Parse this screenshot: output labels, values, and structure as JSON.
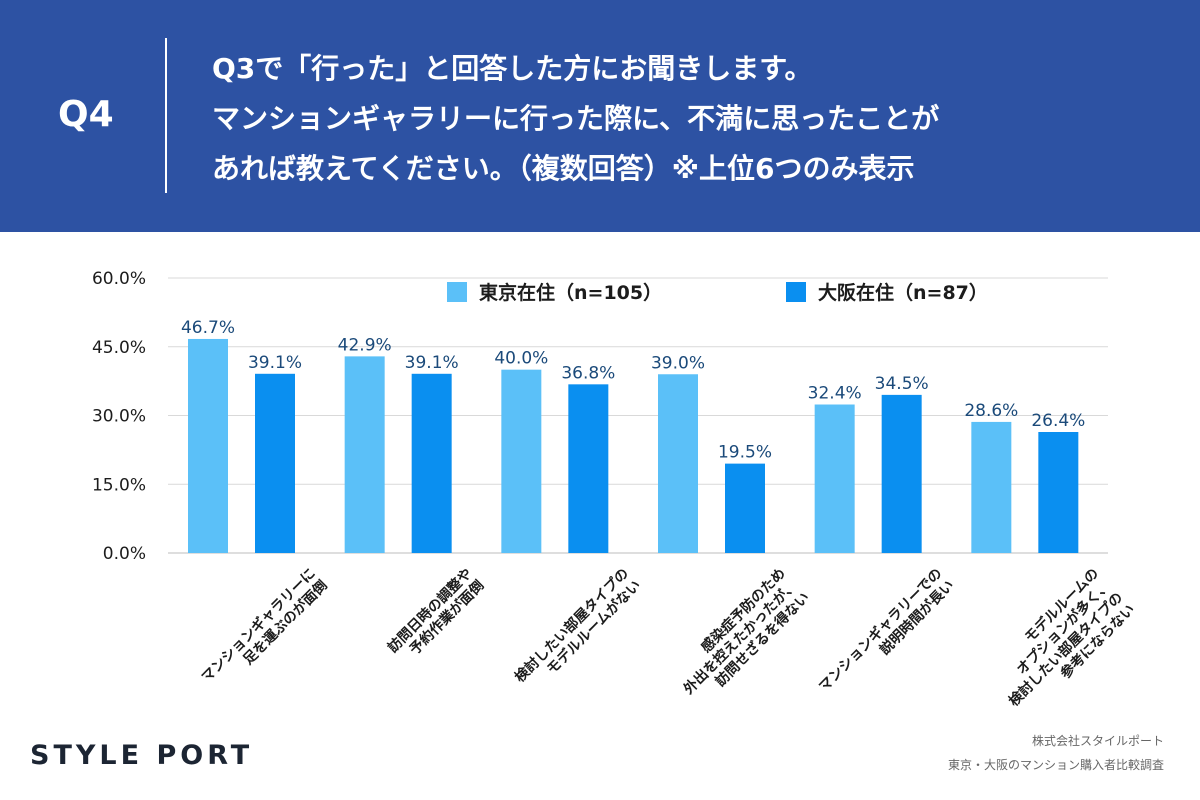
{
  "header": {
    "question_number": "Q4",
    "question_lines": [
      "Q3で「行った」と回答した方にお聞きします。",
      "マンションギャラリーに行った際に、不満に思ったことが",
      "あれば教えてください。（複数回答）※上位6つのみ表示"
    ]
  },
  "chart_data": {
    "type": "bar",
    "categories": [
      [
        "マンションギャラリーに",
        "足を運ぶのが面倒"
      ],
      [
        "訪問日時の調整や",
        "予約作業が面倒"
      ],
      [
        "検討したい部屋タイプの",
        "モデルルームがない"
      ],
      [
        "感染症予防のため",
        "外出を控えたかったが、",
        "訪問せざるを得ない"
      ],
      [
        "マンションギャラリーでの",
        "説明時間が長い"
      ],
      [
        "モデルルームの",
        "オプションが多く、",
        "検討したい部屋タイプの",
        "参考にならない"
      ]
    ],
    "series": [
      {
        "name": "東京在住（n=105）",
        "color": "#5bc0f8",
        "values": [
          46.7,
          42.9,
          40.0,
          39.0,
          32.4,
          28.6
        ],
        "labels": [
          "46.7%",
          "42.9%",
          "40.0%",
          "39.0%",
          "32.4%",
          "28.6%"
        ]
      },
      {
        "name": "大阪在住（n=87）",
        "color": "#0a8ff0",
        "values": [
          39.1,
          39.1,
          36.8,
          19.5,
          34.5,
          26.4
        ],
        "labels": [
          "39.1%",
          "39.1%",
          "36.8%",
          "19.5%",
          "34.5%",
          "26.4%"
        ]
      }
    ],
    "ylim": [
      0,
      60
    ],
    "yticks": [
      "0.0%",
      "15.0%",
      "30.0%",
      "45.0%",
      "60.0%"
    ],
    "grid": true,
    "legend_position": "top-right",
    "label_color": "#1b4a7a"
  },
  "footer": {
    "brand": "STYLE PORT",
    "company": "株式会社スタイルポート",
    "survey": "東京・大阪のマンション購入者比較調査"
  }
}
